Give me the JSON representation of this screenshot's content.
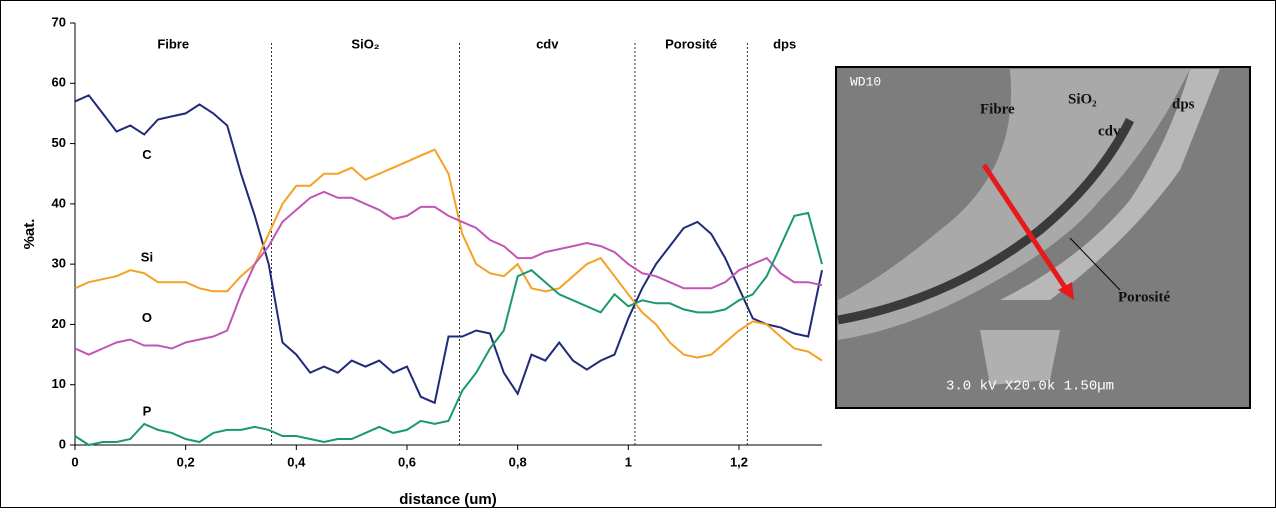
{
  "chart_data": {
    "type": "line",
    "x_label": "distance (um)",
    "y_label": "%at.",
    "x": [
      0,
      0.025,
      0.05,
      0.075,
      0.1,
      0.125,
      0.15,
      0.175,
      0.2,
      0.225,
      0.25,
      0.275,
      0.3,
      0.325,
      0.35,
      0.375,
      0.4,
      0.425,
      0.45,
      0.475,
      0.5,
      0.525,
      0.55,
      0.575,
      0.6,
      0.625,
      0.65,
      0.675,
      0.7,
      0.725,
      0.75,
      0.775,
      0.8,
      0.825,
      0.85,
      0.875,
      0.9,
      0.925,
      0.95,
      0.975,
      1.0,
      1.025,
      1.05,
      1.075,
      1.1,
      1.125,
      1.15,
      1.175,
      1.2,
      1.225,
      1.25,
      1.275,
      1.3,
      1.325,
      1.35
    ],
    "series": [
      {
        "name": "C",
        "color": "#1f2b78",
        "values": [
          57,
          58,
          55,
          52,
          53,
          51.5,
          54,
          54.5,
          55,
          56.5,
          55,
          53,
          45,
          38,
          30,
          17,
          15,
          12,
          13,
          12,
          14,
          13,
          14,
          12,
          13,
          8,
          7,
          18,
          18,
          19,
          18.5,
          12,
          8.5,
          15,
          14,
          17,
          14,
          12.5,
          14,
          15,
          21,
          26,
          30,
          33,
          36,
          37,
          35,
          31,
          26,
          21,
          20,
          19.5,
          18.5,
          18,
          29
        ]
      },
      {
        "name": "Si",
        "color": "#f4a124",
        "values": [
          26,
          27,
          27.5,
          28,
          29,
          28.5,
          27,
          27,
          27,
          26,
          25.5,
          25.5,
          28,
          30,
          35,
          40,
          43,
          43,
          45,
          45,
          46,
          44,
          45,
          46,
          47,
          48,
          49,
          45,
          35,
          30,
          28.5,
          28,
          30,
          26,
          25.5,
          26,
          28,
          30,
          31,
          28,
          25,
          22,
          20,
          17,
          15,
          14.5,
          15,
          17,
          19,
          20.5,
          20,
          18,
          16,
          15.5,
          14
        ]
      },
      {
        "name": "O",
        "color": "#c256b4",
        "values": [
          16,
          15,
          16,
          17,
          17.5,
          16.5,
          16.5,
          16,
          17,
          17.5,
          18,
          19,
          25,
          30,
          33,
          37,
          39,
          41,
          42,
          41,
          41,
          40,
          39,
          37.5,
          38,
          39.5,
          39.5,
          38,
          37,
          36,
          34,
          33,
          31,
          31,
          32,
          32.5,
          33,
          33.5,
          33,
          32,
          30,
          28.5,
          28,
          27,
          26,
          26,
          26,
          27,
          29,
          30,
          31,
          28.5,
          27,
          27,
          26.5
        ]
      },
      {
        "name": "P",
        "color": "#1a9a6a",
        "values": [
          1.5,
          0,
          0.5,
          0.5,
          1,
          3.5,
          2.5,
          2,
          1,
          0.5,
          2,
          2.5,
          2.5,
          3,
          2.5,
          1.5,
          1.5,
          1,
          0.5,
          1,
          1,
          2,
          3,
          2,
          2.5,
          4,
          3.5,
          4,
          9,
          12,
          16,
          19,
          28,
          29,
          27,
          25,
          24,
          23,
          22,
          25,
          23,
          24,
          23.5,
          23.5,
          22.5,
          22,
          22,
          22.5,
          24,
          25,
          28,
          33,
          38,
          38.5,
          30
        ]
      }
    ],
    "xlim": [
      0,
      1.35
    ],
    "ylim": [
      0,
      70
    ],
    "xticks": [
      0,
      {
        "value": 0.2,
        "label": "0,2"
      },
      {
        "value": 0.4,
        "label": "0,4"
      },
      {
        "value": 0.6,
        "label": "0,6"
      },
      {
        "value": 0.8,
        "label": "0,8"
      },
      1,
      {
        "value": 1.2,
        "label": "1,2"
      }
    ],
    "yticks": [
      0,
      10,
      20,
      30,
      40,
      50,
      60,
      70
    ],
    "regions": [
      {
        "label": "Fibre",
        "end": 0.355
      },
      {
        "label": "SiO₂",
        "end": 0.695
      },
      {
        "label": "cdv",
        "end": 1.012
      },
      {
        "label": "Porosité",
        "end": 1.215
      },
      {
        "label": "dps"
      }
    ],
    "image_labels": [
      "WD10",
      "Fibre",
      "SiO₂",
      "cdv",
      "dps",
      "Porosité",
      "3.0 kV X20.0k 1.50µm"
    ]
  }
}
